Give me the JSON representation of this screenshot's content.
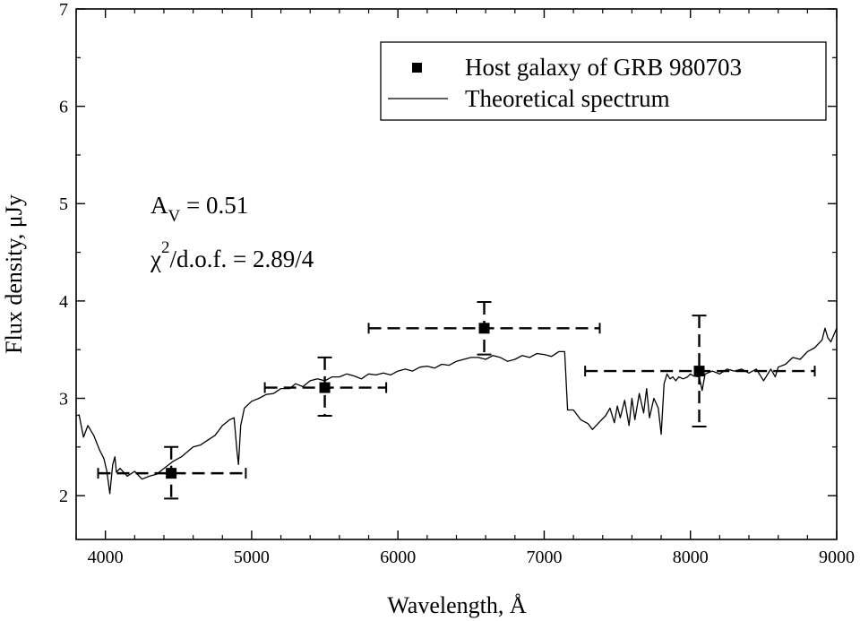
{
  "chart_data": {
    "type": "scatter",
    "xlabel": "Wavelength, Å",
    "ylabel": "Flux density, μJy",
    "xlim": [
      3800,
      9000
    ],
    "ylim": [
      1.55,
      7
    ],
    "xticks": [
      {
        "value": 4000,
        "label": "4000"
      },
      {
        "value": 5000,
        "label": "5000"
      },
      {
        "value": 6000,
        "label": "6000"
      },
      {
        "value": 7000,
        "label": "7000"
      },
      {
        "value": 8000,
        "label": "8000"
      },
      {
        "value": 9000,
        "label": "9000"
      }
    ],
    "yticks": [
      {
        "value": 2,
        "label": "2"
      },
      {
        "value": 3,
        "label": "3"
      },
      {
        "value": 4,
        "label": "4"
      },
      {
        "value": 5,
        "label": "5"
      },
      {
        "value": 6,
        "label": "6"
      },
      {
        "value": 7,
        "label": "7"
      }
    ],
    "x_minor_step": 200,
    "y_minor_step": 0.5,
    "grid": false,
    "legend_position": "top-right",
    "series": [
      {
        "name": "Host galaxy of GRB 980703",
        "kind": "points-with-errorbars",
        "points": [
          {
            "x": 4450,
            "y": 2.23,
            "xerr_low": 3950,
            "xerr_high": 4960,
            "yerr_low": 1.97,
            "yerr_high": 2.5
          },
          {
            "x": 5500,
            "y": 3.11,
            "xerr_low": 5090,
            "xerr_high": 5920,
            "yerr_low": 2.82,
            "yerr_high": 3.42
          },
          {
            "x": 6590,
            "y": 3.72,
            "xerr_low": 5800,
            "xerr_high": 7380,
            "yerr_low": 3.45,
            "yerr_high": 3.99
          },
          {
            "x": 8060,
            "y": 3.28,
            "xerr_low": 7280,
            "xerr_high": 8850,
            "yerr_low": 2.71,
            "yerr_high": 3.85
          }
        ]
      },
      {
        "name": "Theoretical spectrum",
        "kind": "line",
        "points": [
          [
            3800,
            2.82
          ],
          [
            3820,
            2.83
          ],
          [
            3850,
            2.6
          ],
          [
            3880,
            2.72
          ],
          [
            3920,
            2.62
          ],
          [
            3960,
            2.47
          ],
          [
            3990,
            2.38
          ],
          [
            4010,
            2.25
          ],
          [
            4030,
            2.02
          ],
          [
            4050,
            2.32
          ],
          [
            4065,
            2.4
          ],
          [
            4075,
            2.24
          ],
          [
            4100,
            2.28
          ],
          [
            4150,
            2.2
          ],
          [
            4200,
            2.25
          ],
          [
            4250,
            2.17
          ],
          [
            4300,
            2.2
          ],
          [
            4350,
            2.22
          ],
          [
            4400,
            2.28
          ],
          [
            4460,
            2.35
          ],
          [
            4520,
            2.4
          ],
          [
            4600,
            2.5
          ],
          [
            4650,
            2.52
          ],
          [
            4700,
            2.57
          ],
          [
            4750,
            2.62
          ],
          [
            4800,
            2.72
          ],
          [
            4850,
            2.78
          ],
          [
            4880,
            2.8
          ],
          [
            4900,
            2.45
          ],
          [
            4910,
            2.32
          ],
          [
            4925,
            2.72
          ],
          [
            4950,
            2.9
          ],
          [
            5000,
            2.97
          ],
          [
            5050,
            3.0
          ],
          [
            5100,
            3.04
          ],
          [
            5150,
            3.05
          ],
          [
            5200,
            3.1
          ],
          [
            5260,
            3.1
          ],
          [
            5300,
            3.15
          ],
          [
            5350,
            3.12
          ],
          [
            5400,
            3.18
          ],
          [
            5450,
            3.2
          ],
          [
            5500,
            3.18
          ],
          [
            5550,
            3.22
          ],
          [
            5600,
            3.22
          ],
          [
            5650,
            3.25
          ],
          [
            5700,
            3.23
          ],
          [
            5750,
            3.2
          ],
          [
            5800,
            3.25
          ],
          [
            5850,
            3.24
          ],
          [
            5900,
            3.26
          ],
          [
            5950,
            3.24
          ],
          [
            6000,
            3.28
          ],
          [
            6050,
            3.3
          ],
          [
            6100,
            3.28
          ],
          [
            6150,
            3.32
          ],
          [
            6200,
            3.33
          ],
          [
            6250,
            3.31
          ],
          [
            6300,
            3.35
          ],
          [
            6350,
            3.34
          ],
          [
            6400,
            3.38
          ],
          [
            6450,
            3.4
          ],
          [
            6500,
            3.42
          ],
          [
            6550,
            3.42
          ],
          [
            6600,
            3.4
          ],
          [
            6650,
            3.44
          ],
          [
            6700,
            3.42
          ],
          [
            6750,
            3.38
          ],
          [
            6800,
            3.4
          ],
          [
            6850,
            3.44
          ],
          [
            6900,
            3.42
          ],
          [
            6950,
            3.46
          ],
          [
            7000,
            3.45
          ],
          [
            7050,
            3.43
          ],
          [
            7100,
            3.48
          ],
          [
            7140,
            3.48
          ],
          [
            7160,
            2.88
          ],
          [
            7200,
            2.88
          ],
          [
            7250,
            2.78
          ],
          [
            7300,
            2.74
          ],
          [
            7330,
            2.68
          ],
          [
            7380,
            2.76
          ],
          [
            7420,
            2.82
          ],
          [
            7450,
            2.9
          ],
          [
            7480,
            2.75
          ],
          [
            7500,
            2.92
          ],
          [
            7520,
            2.8
          ],
          [
            7550,
            2.98
          ],
          [
            7580,
            2.72
          ],
          [
            7600,
            3.0
          ],
          [
            7620,
            2.78
          ],
          [
            7650,
            3.05
          ],
          [
            7680,
            2.85
          ],
          [
            7700,
            3.1
          ],
          [
            7720,
            2.8
          ],
          [
            7750,
            3.0
          ],
          [
            7780,
            2.9
          ],
          [
            7800,
            2.63
          ],
          [
            7820,
            3.15
          ],
          [
            7840,
            3.25
          ],
          [
            7860,
            3.2
          ],
          [
            7880,
            3.22
          ],
          [
            7900,
            3.18
          ],
          [
            7920,
            3.22
          ],
          [
            7950,
            3.2
          ],
          [
            7980,
            3.22
          ],
          [
            8000,
            3.25
          ],
          [
            8020,
            3.23
          ],
          [
            8060,
            3.22
          ],
          [
            8080,
            3.08
          ],
          [
            8100,
            3.25
          ],
          [
            8150,
            3.28
          ],
          [
            8200,
            3.25
          ],
          [
            8250,
            3.3
          ],
          [
            8300,
            3.28
          ],
          [
            8350,
            3.3
          ],
          [
            8400,
            3.26
          ],
          [
            8450,
            3.3
          ],
          [
            8500,
            3.18
          ],
          [
            8550,
            3.3
          ],
          [
            8580,
            3.22
          ],
          [
            8600,
            3.32
          ],
          [
            8650,
            3.35
          ],
          [
            8700,
            3.42
          ],
          [
            8750,
            3.4
          ],
          [
            8800,
            3.48
          ],
          [
            8850,
            3.52
          ],
          [
            8900,
            3.6
          ],
          [
            8920,
            3.72
          ],
          [
            8940,
            3.62
          ],
          [
            8960,
            3.58
          ],
          [
            8980,
            3.65
          ],
          [
            9000,
            3.72
          ]
        ]
      }
    ],
    "annotations": [
      {
        "main": "A",
        "sub": "V",
        "rest": " = 0.51"
      },
      {
        "main": "χ",
        "sup": "2",
        "rest": "/d.o.f. = 2.89/4"
      }
    ]
  }
}
